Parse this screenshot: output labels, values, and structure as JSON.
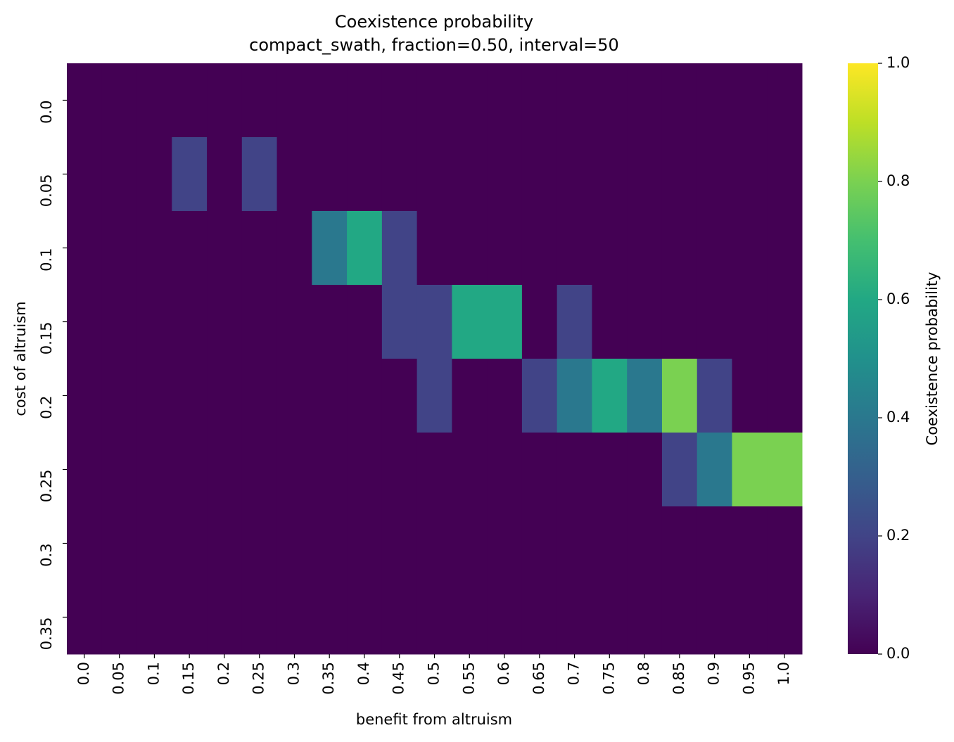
{
  "chart_data": {
    "type": "heatmap",
    "title": "Coexistence probability",
    "subtitle": "compact_swath, fraction=0.50, interval=50",
    "x_label": "benefit from altruism",
    "y_label": "cost of altruism",
    "colorbar_label": "Coexistence probability",
    "colormap": "viridis",
    "zlim": [
      0,
      1
    ],
    "zticks": [
      {
        "value": 0,
        "label": "0.0"
      },
      0.2,
      0.4,
      0.6,
      0.8,
      {
        "value": 1,
        "label": "1.0"
      }
    ],
    "x": [
      "0.0",
      "0.05",
      "0.1",
      "0.15",
      "0.2",
      "0.25",
      "0.3",
      "0.35",
      "0.4",
      "0.45",
      "0.5",
      "0.55",
      "0.6",
      "0.65",
      "0.7",
      "0.75",
      "0.8",
      "0.85",
      "0.9",
      "0.95",
      "1.0"
    ],
    "categories": [
      "0.0",
      "0.05",
      "0.1",
      "0.15",
      "0.2",
      "0.25",
      "0.3",
      "0.35"
    ],
    "values": [
      [
        0,
        0,
        0,
        0,
        0,
        0,
        0,
        0,
        0,
        0,
        0,
        0,
        0,
        0,
        0,
        0,
        0,
        0,
        0,
        0,
        0
      ],
      [
        0,
        0,
        0,
        0.2,
        0,
        0.2,
        0,
        0,
        0,
        0,
        0,
        0,
        0,
        0,
        0,
        0,
        0,
        0,
        0,
        0,
        0
      ],
      [
        0,
        0,
        0,
        0,
        0,
        0,
        0,
        0.4,
        0.6,
        0.2,
        0,
        0,
        0,
        0,
        0,
        0,
        0,
        0,
        0,
        0,
        0
      ],
      [
        0,
        0,
        0,
        0,
        0,
        0,
        0,
        0,
        0,
        0.2,
        0.2,
        0.6,
        0.6,
        0,
        0.2,
        0,
        0,
        0,
        0,
        0,
        0
      ],
      [
        0,
        0,
        0,
        0,
        0,
        0,
        0,
        0,
        0,
        0,
        0.2,
        0,
        0,
        0.2,
        0.4,
        0.6,
        0.4,
        0.8,
        0.2,
        0,
        0
      ],
      [
        0,
        0,
        0,
        0,
        0,
        0,
        0,
        0,
        0,
        0,
        0,
        0,
        0,
        0,
        0,
        0,
        0,
        0.2,
        0.4,
        0.8,
        0.8
      ],
      [
        0,
        0,
        0,
        0,
        0,
        0,
        0,
        0,
        0,
        0,
        0,
        0,
        0,
        0,
        0,
        0,
        0,
        0,
        0,
        0,
        0
      ],
      [
        0,
        0,
        0,
        0,
        0,
        0,
        0,
        0,
        0,
        0,
        0,
        0,
        0,
        0,
        0,
        0,
        0,
        0,
        0,
        0,
        0
      ]
    ]
  }
}
